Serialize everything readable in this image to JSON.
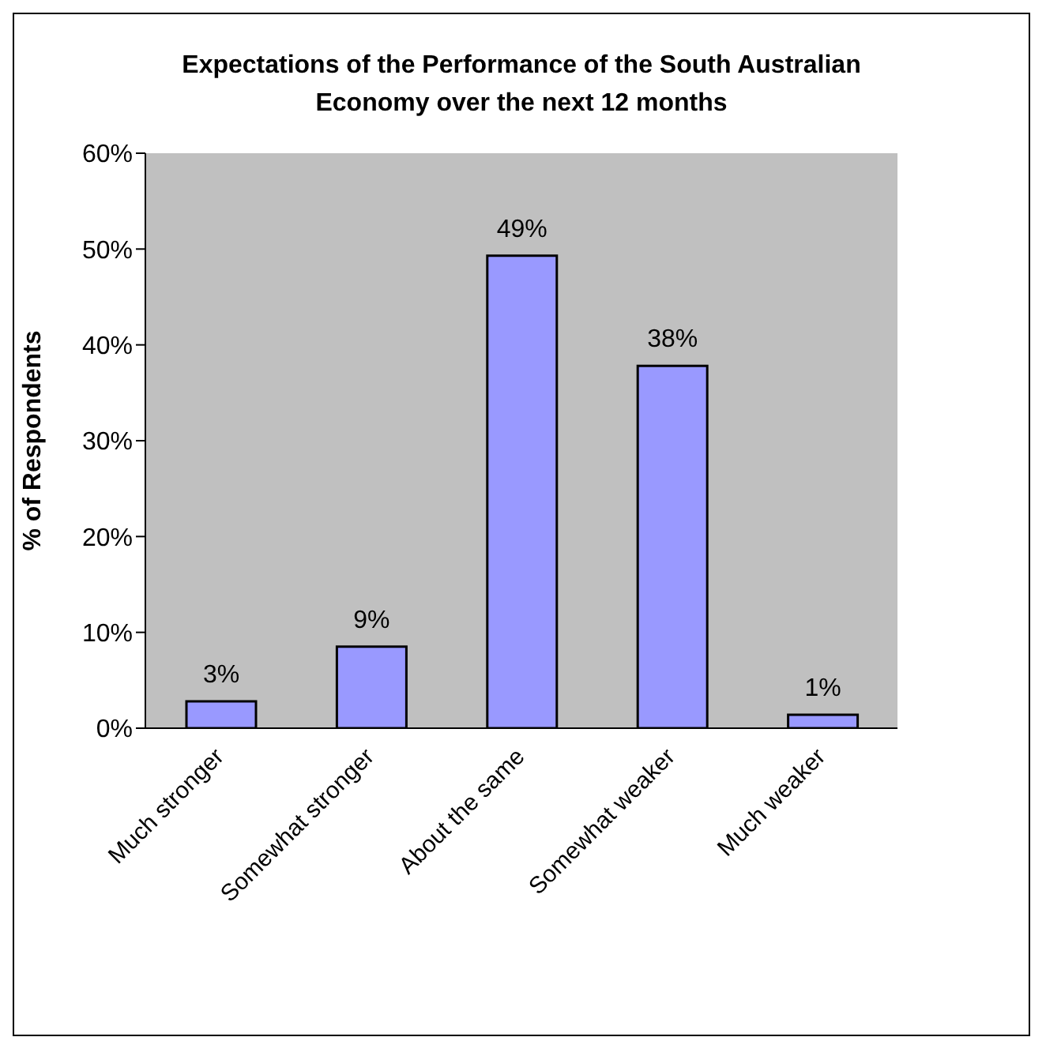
{
  "chart_data": {
    "type": "bar",
    "title": "Expectations of the Performance of the South Australian Economy over the next 12 months",
    "ylabel": "% of Respondents",
    "categories": [
      "Much stronger",
      "Somewhat stronger",
      "About the same",
      "Somewhat weaker",
      "Much weaker"
    ],
    "values": [
      2.8,
      8.5,
      49.3,
      37.8,
      1.4
    ],
    "value_labels": [
      "3%",
      "9%",
      "49%",
      "38%",
      "1%"
    ],
    "color": "#9999ff",
    "ylim": [
      0,
      60
    ],
    "yticks": [
      {
        "value": 0,
        "label": "0%"
      },
      {
        "value": 10,
        "label": "10%"
      },
      {
        "value": 20,
        "label": "20%"
      },
      {
        "value": 30,
        "label": "30%"
      },
      {
        "value": 40,
        "label": "40%"
      },
      {
        "value": 50,
        "label": "50%"
      },
      {
        "value": 60,
        "label": "60%"
      }
    ],
    "grid": false,
    "legend": false
  }
}
